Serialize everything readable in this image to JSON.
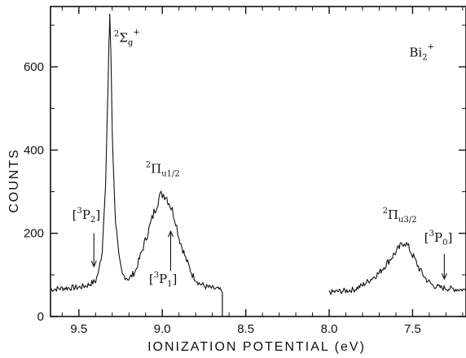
{
  "chart_data": {
    "type": "line",
    "title": "",
    "xlabel": "IONIZATION POTENTIAL (eV)",
    "ylabel": "COUNTS",
    "xlim": [
      9.67,
      7.18
    ],
    "ylim": [
      0,
      745
    ],
    "x_reversed": true,
    "x_ticks": [
      "9.5",
      "9.0",
      "8.5",
      "8.0",
      "7.5"
    ],
    "x_tick_values": [
      9.5,
      9.0,
      8.5,
      8.0,
      7.5
    ],
    "y_ticks": [
      "0",
      "200",
      "400",
      "600"
    ],
    "y_tick_values": [
      0,
      200,
      400,
      600
    ],
    "grid": false,
    "series": [
      {
        "name": "",
        "segment": 1,
        "x": [
          9.67,
          9.6,
          9.5,
          9.45,
          9.4,
          9.38,
          9.36,
          9.34,
          9.33,
          9.32,
          9.315,
          9.31,
          9.305,
          9.3,
          9.29,
          9.28,
          9.26,
          9.24,
          9.2,
          9.16,
          9.12,
          9.08,
          9.05,
          9.02,
          9.0,
          8.98,
          8.96,
          8.94,
          8.92,
          8.9,
          8.86,
          8.82,
          8.78,
          8.74,
          8.7,
          8.66,
          8.64
        ],
        "y": [
          65,
          68,
          70,
          75,
          85,
          110,
          160,
          330,
          470,
          640,
          730,
          660,
          560,
          450,
          320,
          230,
          140,
          100,
          90,
          110,
          160,
          210,
          250,
          285,
          295,
          292,
          275,
          255,
          230,
          190,
          140,
          100,
          80,
          72,
          68,
          65,
          58
        ]
      },
      {
        "name": "",
        "segment": 2,
        "x": [
          8.0,
          7.95,
          7.9,
          7.85,
          7.8,
          7.75,
          7.7,
          7.66,
          7.62,
          7.58,
          7.55,
          7.53,
          7.5,
          7.46,
          7.42,
          7.38,
          7.34,
          7.3,
          7.25,
          7.18
        ],
        "y": [
          58,
          60,
          62,
          65,
          75,
          90,
          105,
          125,
          145,
          165,
          180,
          170,
          148,
          115,
          90,
          75,
          70,
          68,
          66,
          64
        ]
      }
    ],
    "annotations": [
      {
        "id": "sigma",
        "text": "²Σg⁺",
        "main": "Σ",
        "pre": "2",
        "sub": "g",
        "sup": "+",
        "x": 9.29,
        "y": 660
      },
      {
        "id": "pi12",
        "text": "²Πu1/2",
        "main": "Π",
        "pre": "2",
        "sub": "u1/2",
        "sup": "",
        "x": 9.1,
        "y": 345
      },
      {
        "id": "pi32",
        "text": "²Πu3/2",
        "main": "Π",
        "pre": "2",
        "sub": "u3/2",
        "sup": "",
        "x": 7.68,
        "y": 235
      },
      {
        "id": "bi2",
        "text": "Bi₂⁺",
        "main": "Bi",
        "pre": "",
        "sub": "2",
        "sup": "+",
        "x": 7.52,
        "y": 625
      },
      {
        "id": "p2",
        "text": "[³P₂]",
        "main": "P",
        "pre": "3",
        "sub": "2",
        "sup": "",
        "bracket": true,
        "x": 9.54,
        "y": 235,
        "arrow_x": 9.41,
        "arrow_y_from": 200,
        "arrow_y_to": 120
      },
      {
        "id": "p1",
        "text": "[³P₁]",
        "main": "P",
        "pre": "3",
        "sub": "1",
        "sup": "",
        "bracket": true,
        "x": 9.08,
        "y": 80,
        "arrow_x": 8.95,
        "arrow_y_from": 110,
        "arrow_y_to": 205
      },
      {
        "id": "p0",
        "text": "[³P₀]",
        "main": "P",
        "pre": "3",
        "sub": "0",
        "sup": "",
        "bracket": true,
        "x": 7.43,
        "y": 180,
        "arrow_x": 7.31,
        "arrow_y_from": 150,
        "arrow_y_to": 90
      }
    ]
  },
  "colors": {
    "trace": "#111111",
    "axis": "#111111",
    "background": "#ffffff"
  }
}
